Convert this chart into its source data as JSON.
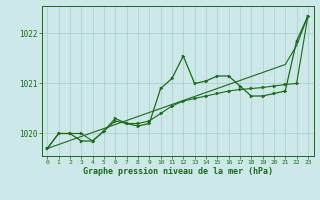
{
  "title": "Graphe pression niveau de la mer (hPa)",
  "bg_color": "#cce8e8",
  "grid_color": "#aacccc",
  "line_color": "#1a6b1a",
  "xlim": [
    -0.5,
    23.5
  ],
  "ylim": [
    1019.55,
    1022.55
  ],
  "yticks": [
    1020,
    1021,
    1022
  ],
  "xticks": [
    0,
    1,
    2,
    3,
    4,
    5,
    6,
    7,
    8,
    9,
    10,
    11,
    12,
    13,
    14,
    15,
    16,
    17,
    18,
    19,
    20,
    21,
    22,
    23
  ],
  "series_jagged": [
    1019.7,
    1020.0,
    1020.0,
    1019.85,
    1019.85,
    1020.05,
    1020.3,
    1020.2,
    1020.15,
    1020.2,
    1020.9,
    1021.1,
    1021.55,
    1021.0,
    1021.05,
    1021.15,
    1021.15,
    1020.95,
    1020.75,
    1020.75,
    1020.8,
    1020.85,
    1021.85,
    1022.35
  ],
  "series_smooth": [
    1019.7,
    1020.0,
    1020.0,
    1020.0,
    1019.85,
    1020.05,
    1020.25,
    1020.2,
    1020.2,
    1020.25,
    1020.4,
    1020.55,
    1020.65,
    1020.7,
    1020.75,
    1020.8,
    1020.85,
    1020.88,
    1020.9,
    1020.92,
    1020.95,
    1020.98,
    1021.0,
    1022.35
  ],
  "series_trend": [
    1019.7,
    1019.78,
    1019.86,
    1019.94,
    1020.02,
    1020.1,
    1020.18,
    1020.26,
    1020.34,
    1020.42,
    1020.5,
    1020.58,
    1020.66,
    1020.74,
    1020.82,
    1020.9,
    1020.98,
    1021.06,
    1021.14,
    1021.22,
    1021.3,
    1021.38,
    1021.76,
    1022.35
  ]
}
